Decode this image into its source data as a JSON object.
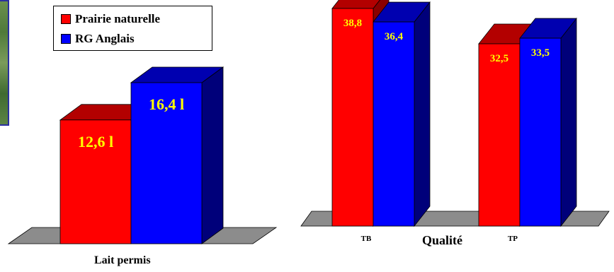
{
  "legend": {
    "items": [
      {
        "label": "Prairie naturelle",
        "color": "#ff0000"
      },
      {
        "label": "RG Anglais",
        "color": "#0000ff"
      }
    ]
  },
  "colors": {
    "red_front": "#ff0000",
    "red_top": "#b30000",
    "red_side": "#8a0000",
    "blue_front": "#0000ff",
    "blue_top": "#0000b0",
    "blue_side": "#00007a",
    "floor": "#8c8c8c",
    "label_text": "#ffff00"
  },
  "chart_data": [
    {
      "type": "bar",
      "xlabel": "Lait permis",
      "categories": [
        ""
      ],
      "series": [
        {
          "name": "Prairie naturelle",
          "values": [
            12.6
          ],
          "labels": [
            "12,6 l"
          ]
        },
        {
          "name": "RG Anglais",
          "values": [
            16.4
          ],
          "labels": [
            "16,4 l"
          ]
        }
      ]
    },
    {
      "type": "bar",
      "xlabel": "Qualité",
      "categories": [
        "TB",
        "TP"
      ],
      "series": [
        {
          "name": "Prairie naturelle",
          "values": [
            38.8,
            32.5
          ],
          "labels": [
            "38,8",
            "32,5"
          ]
        },
        {
          "name": "RG Anglais",
          "values": [
            36.4,
            33.5
          ],
          "labels": [
            "36,4",
            "33,5"
          ]
        }
      ]
    }
  ]
}
